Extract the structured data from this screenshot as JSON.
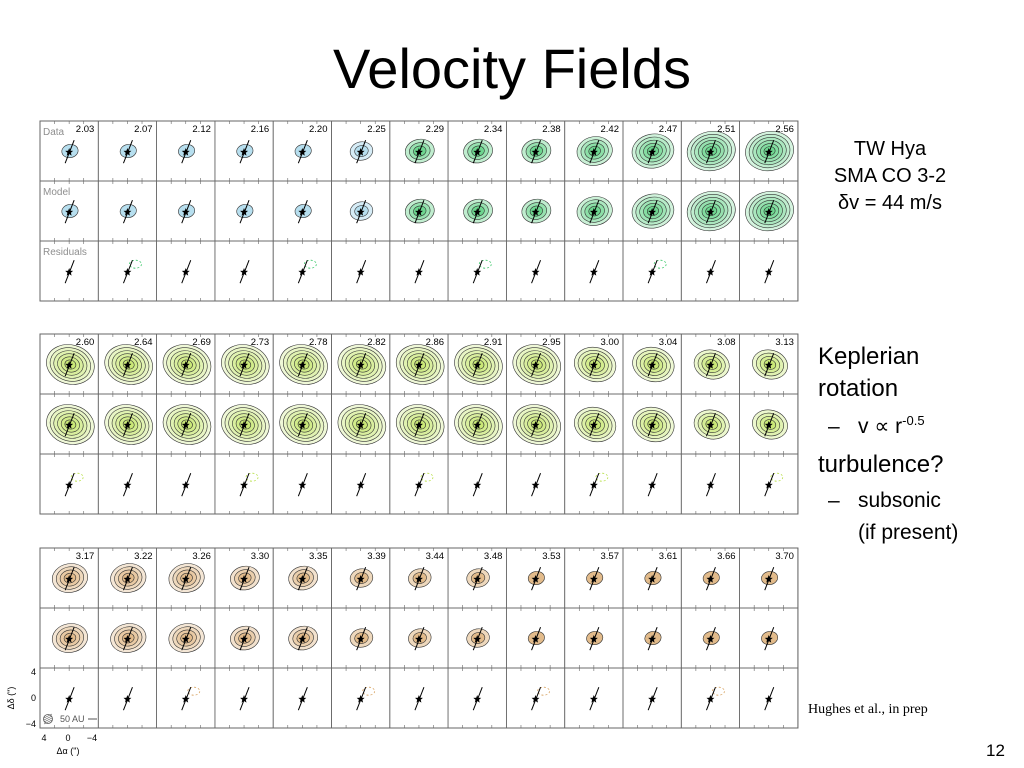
{
  "title": "Velocity Fields",
  "info": {
    "source": "TW Hya",
    "instrument": "SMA CO 3-2",
    "resolution": "δv = 44 m/s"
  },
  "points": {
    "keplerian_line1": "Keplerian",
    "keplerian_line2": "rotation",
    "keplerian_dash": "–",
    "keplerian_relation": "v ∝ r",
    "keplerian_exponent": "-0.5",
    "turbulence": "turbulence?",
    "turbulence_dash": "–",
    "turbulence_detail1": "subsonic",
    "turbulence_detail2": "(if present)"
  },
  "citation": "Hughes et al., in prep",
  "page_number": "12",
  "figure": {
    "row_labels": [
      "Data",
      "Model",
      "Residuals"
    ],
    "channel_groups": [
      [
        "2.03",
        "2.07",
        "2.12",
        "2.16",
        "2.20",
        "2.25",
        "2.29",
        "2.34",
        "2.38",
        "2.42",
        "2.47",
        "2.51",
        "2.56"
      ],
      [
        "2.60",
        "2.64",
        "2.69",
        "2.73",
        "2.78",
        "2.82",
        "2.86",
        "2.91",
        "2.95",
        "3.00",
        "3.04",
        "3.08",
        "3.13"
      ],
      [
        "3.17",
        "3.22",
        "3.26",
        "3.30",
        "3.35",
        "3.39",
        "3.44",
        "3.48",
        "3.53",
        "3.57",
        "3.61",
        "3.66",
        "3.70"
      ]
    ],
    "emission_levels": [
      [
        1,
        1,
        1,
        1,
        1,
        2,
        3,
        3,
        3,
        4,
        5,
        6,
        6
      ],
      [
        6,
        6,
        6,
        6,
        6,
        6,
        6,
        6,
        6,
        5,
        5,
        4,
        4
      ],
      [
        4,
        4,
        4,
        3,
        3,
        2,
        2,
        2,
        1,
        1,
        1,
        1,
        1
      ]
    ],
    "group_colors": [
      "#3cc86a",
      "#b8e04a",
      "#d8a464"
    ],
    "axis": {
      "y_label": "Δδ (\")",
      "x_label": "Δα (\")",
      "y_ticks": [
        "4",
        "0",
        "−4"
      ],
      "x_ticks": [
        "4",
        "0",
        "−4"
      ],
      "scale_bar": "50 AU"
    }
  }
}
